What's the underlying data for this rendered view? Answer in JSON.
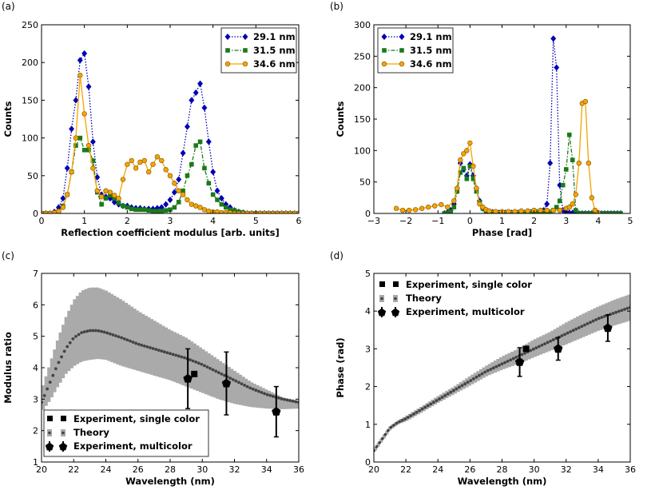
{
  "chart_data": [
    {
      "panel": "(a)",
      "type": "line",
      "xlabel": "Reflection coefficient modulus [arb. units]",
      "ylabel": "Counts",
      "xlim": [
        0,
        6
      ],
      "ylim": [
        0,
        250
      ],
      "xticks": [
        0,
        1,
        2,
        3,
        4,
        5,
        6
      ],
      "yticks": [
        0,
        50,
        100,
        150,
        200,
        250
      ],
      "xtick_labels": [
        "0",
        "1",
        "2",
        "3",
        "4",
        "5",
        "6"
      ],
      "ytick_labels": [
        "0",
        "50",
        "100",
        "150",
        "200",
        "250"
      ],
      "legend_position": "top-right",
      "series": [
        {
          "name": "29.1 nm",
          "color": "#0000b3",
          "style": "dotted",
          "marker": "diamond",
          "x": [
            0,
            0.1,
            0.2,
            0.3,
            0.4,
            0.5,
            0.6,
            0.7,
            0.8,
            0.9,
            1.0,
            1.1,
            1.2,
            1.3,
            1.4,
            1.5,
            1.6,
            1.7,
            1.8,
            1.9,
            2.0,
            2.1,
            2.2,
            2.3,
            2.4,
            2.5,
            2.6,
            2.7,
            2.8,
            2.9,
            3.0,
            3.1,
            3.2,
            3.3,
            3.4,
            3.5,
            3.6,
            3.7,
            3.8,
            3.9,
            4.0,
            4.1,
            4.2,
            4.3,
            4.4,
            4.5,
            4.6,
            4.7,
            4.8,
            4.9,
            5.0,
            5.1,
            5.2,
            5.3,
            5.4,
            5.5,
            5.6,
            5.7,
            5.8,
            5.9,
            6.0
          ],
          "y": [
            0,
            0,
            0,
            2,
            8,
            20,
            60,
            112,
            150,
            203,
            212,
            168,
            95,
            48,
            25,
            22,
            20,
            15,
            12,
            10,
            10,
            8,
            7,
            7,
            6,
            6,
            6,
            7,
            8,
            12,
            18,
            28,
            45,
            80,
            115,
            150,
            160,
            172,
            140,
            95,
            55,
            30,
            20,
            12,
            8,
            4,
            2,
            1,
            0,
            0,
            0,
            0,
            0,
            0,
            0,
            0,
            0,
            0,
            0,
            0,
            0
          ]
        },
        {
          "name": "31.5 nm",
          "color": "#1a7a1a",
          "style": "dashdot",
          "marker": "square",
          "x": [
            0,
            0.1,
            0.2,
            0.3,
            0.4,
            0.5,
            0.6,
            0.7,
            0.8,
            0.9,
            1.0,
            1.1,
            1.2,
            1.3,
            1.4,
            1.5,
            1.6,
            1.7,
            1.8,
            1.9,
            2.0,
            2.1,
            2.2,
            2.3,
            2.4,
            2.5,
            2.6,
            2.7,
            2.8,
            2.9,
            3.0,
            3.1,
            3.2,
            3.3,
            3.4,
            3.5,
            3.6,
            3.7,
            3.8,
            3.9,
            4.0,
            4.1,
            4.2,
            4.3,
            4.4,
            4.5,
            4.6,
            4.7,
            4.8,
            4.9,
            5.0,
            5.1,
            5.2,
            5.3,
            5.4,
            5.5,
            5.6,
            5.7,
            5.8,
            5.9,
            6.0
          ],
          "y": [
            0,
            0,
            0,
            0,
            2,
            10,
            25,
            55,
            90,
            100,
            84,
            84,
            70,
            28,
            12,
            20,
            24,
            20,
            14,
            10,
            8,
            6,
            5,
            5,
            5,
            4,
            3,
            3,
            3,
            4,
            5,
            8,
            15,
            30,
            50,
            65,
            90,
            95,
            60,
            40,
            25,
            18,
            12,
            8,
            5,
            4,
            2,
            1,
            0,
            0,
            0,
            0,
            0,
            0,
            0,
            0,
            0,
            0,
            0,
            0,
            0
          ]
        },
        {
          "name": "34.6 nm",
          "color": "#f5a300",
          "style": "solid",
          "marker": "circle",
          "x": [
            0,
            0.1,
            0.2,
            0.3,
            0.4,
            0.5,
            0.6,
            0.7,
            0.8,
            0.9,
            1.0,
            1.1,
            1.2,
            1.3,
            1.4,
            1.5,
            1.6,
            1.7,
            1.8,
            1.9,
            2.0,
            2.1,
            2.2,
            2.3,
            2.4,
            2.5,
            2.6,
            2.7,
            2.8,
            2.9,
            3.0,
            3.1,
            3.2,
            3.3,
            3.4,
            3.5,
            3.6,
            3.7,
            3.8,
            3.9,
            4.0,
            4.1,
            4.2,
            4.3,
            4.4,
            4.5,
            4.6,
            4.7,
            4.8,
            4.9,
            5.0,
            5.1,
            5.2,
            5.3,
            5.4,
            5.5,
            5.6,
            5.7,
            5.8,
            5.9,
            6.0
          ],
          "y": [
            0,
            0,
            0,
            1,
            3,
            8,
            25,
            55,
            100,
            183,
            132,
            90,
            60,
            30,
            22,
            30,
            28,
            24,
            20,
            45,
            65,
            70,
            60,
            68,
            70,
            55,
            65,
            75,
            70,
            58,
            50,
            40,
            30,
            25,
            18,
            12,
            10,
            8,
            5,
            3,
            2,
            2,
            1,
            1,
            1,
            0,
            0,
            0,
            0,
            0,
            0,
            0,
            0,
            0,
            0,
            0,
            0,
            0,
            0,
            0,
            0
          ]
        }
      ]
    },
    {
      "panel": "(b)",
      "type": "line",
      "xlabel": "Phase [rad]",
      "ylabel": "Counts",
      "xlim": [
        -3,
        5
      ],
      "ylim": [
        0,
        300
      ],
      "xticks": [
        -3,
        -2,
        -1,
        0,
        1,
        2,
        3,
        4,
        5
      ],
      "yticks": [
        0,
        50,
        100,
        150,
        200,
        250,
        300
      ],
      "xtick_labels": [
        "−3",
        "−2",
        "−1",
        "0",
        "1",
        "2",
        "3",
        "4",
        "5"
      ],
      "ytick_labels": [
        "0",
        "50",
        "100",
        "150",
        "200",
        "250",
        "300"
      ],
      "legend_position": "top-left",
      "series": [
        {
          "name": "29.1 nm",
          "color": "#0000b3",
          "style": "dotted",
          "marker": "diamond",
          "x": [
            -0.8,
            -0.7,
            -0.6,
            -0.5,
            -0.4,
            -0.3,
            -0.2,
            -0.1,
            0.0,
            0.1,
            0.2,
            0.3,
            0.4,
            0.5,
            0.6,
            0.7,
            0.8,
            0.9,
            1.0,
            1.1,
            1.2,
            1.3,
            1.4,
            1.5,
            1.6,
            1.7,
            1.8,
            1.9,
            2.0,
            2.1,
            2.2,
            2.3,
            2.4,
            2.5,
            2.6,
            2.7,
            2.8,
            2.9,
            3.0,
            3.1,
            3.2,
            3.3,
            3.4,
            3.5,
            3.6,
            3.7,
            3.8,
            3.9,
            4.0,
            4.1,
            4.2,
            4.3,
            4.4,
            4.5,
            4.6,
            4.7
          ],
          "y": [
            0,
            2,
            5,
            15,
            40,
            80,
            70,
            60,
            78,
            60,
            40,
            20,
            8,
            5,
            3,
            2,
            2,
            1,
            1,
            1,
            1,
            1,
            1,
            1,
            1,
            1,
            2,
            2,
            2,
            2,
            3,
            5,
            15,
            80,
            278,
            232,
            45,
            5,
            2,
            1,
            1,
            0,
            0,
            0,
            0,
            0,
            0,
            0,
            0,
            0,
            0,
            0,
            0,
            0,
            0,
            0
          ]
        },
        {
          "name": "31.5 nm",
          "color": "#1a7a1a",
          "style": "dashdot",
          "marker": "square",
          "x": [
            -0.8,
            -0.7,
            -0.6,
            -0.5,
            -0.4,
            -0.3,
            -0.2,
            -0.1,
            0.0,
            0.1,
            0.2,
            0.3,
            0.4,
            0.5,
            0.6,
            0.7,
            0.8,
            0.9,
            1.0,
            1.1,
            1.2,
            1.3,
            1.4,
            1.5,
            1.6,
            1.7,
            1.8,
            1.9,
            2.0,
            2.1,
            2.2,
            2.3,
            2.4,
            2.5,
            2.6,
            2.7,
            2.8,
            2.9,
            3.0,
            3.1,
            3.2,
            3.3,
            3.4,
            3.5,
            3.6,
            3.7,
            3.8,
            3.9,
            4.0,
            4.1,
            4.2,
            4.3,
            4.4,
            4.5,
            4.6,
            4.7
          ],
          "y": [
            0,
            1,
            3,
            10,
            35,
            65,
            72,
            55,
            75,
            55,
            35,
            18,
            8,
            4,
            2,
            2,
            1,
            1,
            1,
            1,
            1,
            1,
            1,
            1,
            1,
            1,
            1,
            1,
            1,
            1,
            1,
            2,
            2,
            3,
            5,
            10,
            20,
            45,
            70,
            125,
            85,
            5,
            0,
            0,
            0,
            0,
            0,
            0,
            0,
            0,
            0,
            0,
            0,
            0,
            0,
            0
          ]
        },
        {
          "name": "34.6 nm",
          "color": "#f5a300",
          "style": "solid",
          "marker": "circle",
          "x": [
            -2.3,
            -2.1,
            -1.9,
            -1.7,
            -1.5,
            -1.3,
            -1.1,
            -0.9,
            -0.7,
            -0.5,
            -0.4,
            -0.3,
            -0.2,
            -0.1,
            0.0,
            0.1,
            0.2,
            0.3,
            0.4,
            0.5,
            0.6,
            0.8,
            1.0,
            1.2,
            1.4,
            1.6,
            1.8,
            2.0,
            2.2,
            2.4,
            2.6,
            2.8,
            3.0,
            3.1,
            3.2,
            3.3,
            3.4,
            3.5,
            3.6,
            3.7,
            3.8,
            3.9,
            4.0
          ],
          "y": [
            8,
            5,
            5,
            6,
            8,
            10,
            12,
            14,
            10,
            20,
            40,
            85,
            95,
            100,
            112,
            75,
            40,
            15,
            10,
            6,
            4,
            3,
            3,
            3,
            3,
            4,
            4,
            5,
            5,
            5,
            5,
            5,
            8,
            10,
            15,
            30,
            80,
            175,
            178,
            80,
            25,
            5,
            1
          ]
        }
      ]
    },
    {
      "panel": "(c)",
      "type": "scatter",
      "xlabel": "Wavelength (nm)",
      "ylabel": "Modulus ratio",
      "xlim": [
        20,
        36
      ],
      "ylim": [
        1,
        7
      ],
      "xticks": [
        20,
        22,
        24,
        26,
        28,
        30,
        32,
        34,
        36
      ],
      "yticks": [
        1,
        2,
        3,
        4,
        5,
        6,
        7
      ],
      "xtick_labels": [
        "20",
        "22",
        "24",
        "26",
        "28",
        "30",
        "32",
        "34",
        "36"
      ],
      "ytick_labels": [
        "1",
        "2",
        "3",
        "4",
        "5",
        "6",
        "7"
      ],
      "legend_position": "bottom-left",
      "legend": [
        "Experiment, single color",
        "Theory",
        "Experiment, multicolor"
      ],
      "theory_curve": {
        "x": [
          20,
          20.5,
          21,
          21.5,
          22,
          22.5,
          23,
          23.5,
          24,
          25,
          26,
          27,
          28,
          29,
          30,
          31,
          32,
          33,
          34,
          35,
          36
        ],
        "y": [
          2.9,
          3.5,
          4.1,
          4.6,
          4.95,
          5.12,
          5.18,
          5.18,
          5.12,
          4.95,
          4.75,
          4.6,
          4.45,
          4.3,
          4.1,
          3.85,
          3.6,
          3.35,
          3.15,
          3.0,
          2.9
        ],
        "y_upper": [
          3.3,
          4.1,
          4.9,
          5.6,
          6.15,
          6.45,
          6.55,
          6.55,
          6.45,
          6.15,
          5.8,
          5.5,
          5.2,
          4.95,
          4.6,
          4.25,
          3.9,
          3.55,
          3.3,
          3.05,
          2.95
        ],
        "y_lower": [
          2.6,
          2.95,
          3.4,
          3.8,
          4.05,
          4.2,
          4.25,
          4.28,
          4.25,
          4.05,
          3.9,
          3.75,
          3.6,
          3.4,
          3.2,
          3.0,
          2.85,
          2.75,
          2.7,
          2.68,
          2.7
        ]
      },
      "single_color": {
        "x": [
          29.5
        ],
        "y": [
          3.8
        ]
      },
      "multicolor": {
        "x": [
          29.1,
          31.5,
          34.6
        ],
        "y": [
          3.65,
          3.5,
          2.6
        ],
        "err": [
          0.95,
          1.0,
          0.8
        ]
      }
    },
    {
      "panel": "(d)",
      "type": "scatter",
      "xlabel": "Wavelength (nm)",
      "ylabel": "Phase (rad)",
      "xlim": [
        20,
        36
      ],
      "ylim": [
        0,
        5
      ],
      "xticks": [
        20,
        22,
        24,
        26,
        28,
        30,
        32,
        34,
        36
      ],
      "yticks": [
        0,
        1,
        2,
        3,
        4,
        5
      ],
      "xtick_labels": [
        "20",
        "22",
        "24",
        "26",
        "28",
        "30",
        "32",
        "34",
        "36"
      ],
      "ytick_labels": [
        "0",
        "1",
        "2",
        "3",
        "4",
        "5"
      ],
      "legend_position": "top-left",
      "legend": [
        "Experiment, single color",
        "Theory",
        "Experiment, multicolor"
      ],
      "theory_curve": {
        "x": [
          20,
          20.5,
          21,
          21.5,
          22,
          23,
          24,
          25,
          26,
          27,
          28,
          29,
          30,
          31,
          32,
          33,
          34,
          35,
          36
        ],
        "y": [
          0.3,
          0.6,
          0.9,
          1.05,
          1.15,
          1.4,
          1.65,
          1.9,
          2.15,
          2.4,
          2.6,
          2.8,
          3.0,
          3.2,
          3.4,
          3.6,
          3.8,
          3.95,
          4.1
        ],
        "y_upper": [
          0.35,
          0.65,
          0.95,
          1.1,
          1.22,
          1.48,
          1.75,
          2.0,
          2.28,
          2.55,
          2.8,
          3.0,
          3.25,
          3.45,
          3.7,
          3.92,
          4.12,
          4.3,
          4.45
        ],
        "y_lower": [
          0.25,
          0.55,
          0.85,
          1.0,
          1.08,
          1.32,
          1.57,
          1.8,
          2.03,
          2.27,
          2.45,
          2.6,
          2.78,
          2.95,
          3.12,
          3.3,
          3.48,
          3.62,
          3.75
        ]
      },
      "single_color": {
        "x": [
          29.5
        ],
        "y": [
          3.0
        ]
      },
      "multicolor": {
        "x": [
          29.1,
          31.5,
          34.6
        ],
        "y": [
          2.65,
          3.0,
          3.55
        ],
        "err": [
          0.38,
          0.3,
          0.35
        ]
      }
    }
  ]
}
